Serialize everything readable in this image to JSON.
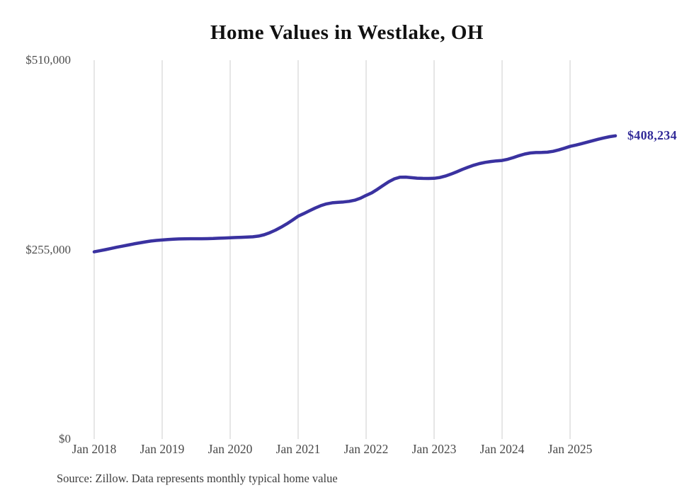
{
  "chart_data": {
    "type": "line",
    "title": "Home Values in Westlake, OH",
    "subtitle": "",
    "xlabel": "",
    "ylabel": "",
    "ylim": [
      0,
      510000
    ],
    "grid": "vertical-only",
    "legend_position": "none",
    "end_label": "$408,234",
    "end_value": 408234,
    "y_ticks": [
      {
        "label": "$0",
        "value": 0
      },
      {
        "label": "$255,000",
        "value": 255000
      },
      {
        "label": "$510,000",
        "value": 510000
      }
    ],
    "x_ticks": [
      {
        "label": "Jan 2018",
        "month_index": 0
      },
      {
        "label": "Jan 2019",
        "month_index": 12
      },
      {
        "label": "Jan 2020",
        "month_index": 24
      },
      {
        "label": "Jan 2021",
        "month_index": 36
      },
      {
        "label": "Jan 2022",
        "month_index": 48
      },
      {
        "label": "Jan 2023",
        "month_index": 60
      },
      {
        "label": "Jan 2024",
        "month_index": 72
      },
      {
        "label": "Jan 2025",
        "month_index": 84
      }
    ],
    "series": [
      {
        "name": "Monthly typical home value",
        "start_month": "2018-01",
        "end_month": "2025-09",
        "frequency": "monthly",
        "values": [
          252000,
          253500,
          255000,
          256600,
          258200,
          259700,
          261200,
          262700,
          264100,
          265400,
          266500,
          267400,
          268000,
          268500,
          269000,
          269400,
          269600,
          269700,
          269700,
          269700,
          269800,
          270000,
          270300,
          270600,
          271000,
          271300,
          271600,
          271900,
          272300,
          273200,
          275000,
          277800,
          281200,
          285200,
          289700,
          294700,
          300000,
          303500,
          307300,
          311000,
          314200,
          316600,
          318000,
          318700,
          319200,
          320000,
          321500,
          324200,
          328000,
          331500,
          336200,
          341400,
          346400,
          350300,
          352500,
          352600,
          351900,
          351200,
          350900,
          350800,
          351000,
          352000,
          354000,
          356700,
          359800,
          363000,
          366000,
          368600,
          370800,
          372400,
          373600,
          374400,
          375000,
          376600,
          378900,
          381500,
          383700,
          385100,
          385700,
          385800,
          386200,
          387300,
          389200,
          391500,
          394000,
          395700,
          397600,
          399600,
          401600,
          403600,
          405400,
          407000,
          408234
        ]
      }
    ],
    "colors": {
      "line": "#3a32a0",
      "end_label": "#332c99",
      "grid": "#cccccc",
      "axis_text": "#4a4a4a",
      "title_text": "#111111",
      "source_text": "#3d3d3d"
    }
  },
  "footer": {
    "source_text": "Source: Zillow. Data represents monthly typical home value"
  }
}
